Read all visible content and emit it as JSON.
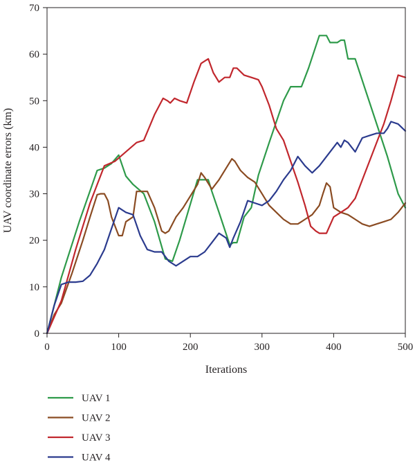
{
  "chart_data": {
    "type": "line",
    "title": "",
    "xlabel": "Iterations",
    "ylabel": "UAV coordinate errors (km)",
    "xlim": [
      0,
      500
    ],
    "ylim": [
      0,
      70
    ],
    "xticks": [
      0,
      100,
      200,
      300,
      400,
      500
    ],
    "yticks": [
      0,
      10,
      20,
      30,
      40,
      50,
      60,
      70
    ],
    "grid": false,
    "legend_position": "bottom-left, below plot",
    "series": [
      {
        "name": "UAV 1",
        "color": "#2e9a4a",
        "x": [
          0,
          20,
          45,
          70,
          80,
          90,
          100,
          110,
          120,
          135,
          150,
          165,
          175,
          185,
          210,
          220,
          225,
          230,
          240,
          255,
          260,
          265,
          275,
          285,
          295,
          310,
          330,
          340,
          355,
          365,
          380,
          390,
          395,
          405,
          410,
          415,
          420,
          430,
          445,
          460,
          475,
          490,
          500
        ],
        "y": [
          0,
          12,
          24,
          35,
          35.5,
          36.5,
          38.3,
          33.8,
          32,
          30,
          24,
          16,
          15.5,
          20,
          33,
          33,
          33,
          30.5,
          26,
          19,
          19.5,
          19.5,
          25,
          27,
          34,
          41,
          50,
          53,
          53,
          57,
          64,
          64,
          62.5,
          62.5,
          63,
          63,
          59,
          59,
          52,
          45,
          38,
          30,
          27
        ]
      },
      {
        "name": "UAV 2",
        "color": "#8a4b22",
        "x": [
          0,
          10,
          20,
          35,
          50,
          60,
          70,
          75,
          80,
          85,
          90,
          100,
          105,
          110,
          120,
          125,
          130,
          140,
          150,
          160,
          165,
          170,
          180,
          190,
          200,
          210,
          215,
          220,
          230,
          240,
          250,
          258,
          262,
          270,
          280,
          290,
          300,
          310,
          320,
          330,
          340,
          350,
          355,
          360,
          370,
          380,
          385,
          390,
          395,
          400,
          410,
          420,
          430,
          440,
          450,
          460,
          470,
          480,
          490,
          500
        ],
        "y": [
          0,
          4,
          6.5,
          13,
          20,
          25,
          29.8,
          30,
          30,
          28.5,
          25,
          21,
          21,
          24,
          25,
          30.5,
          30.5,
          30.5,
          27,
          22,
          21.5,
          22,
          25,
          27,
          29.5,
          32,
          34.5,
          33.5,
          31,
          33,
          35.5,
          37.5,
          37,
          35,
          33.5,
          32.5,
          30,
          27.5,
          26,
          24.5,
          23.5,
          23.5,
          24,
          24.5,
          25.5,
          27.5,
          30,
          32.3,
          31.5,
          27,
          26,
          25.5,
          24.5,
          23.5,
          23,
          23.5,
          24,
          24.5,
          26,
          28
        ]
      },
      {
        "name": "UAV 3",
        "color": "#c1272d",
        "x": [
          0,
          20,
          40,
          60,
          80,
          95,
          110,
          125,
          135,
          150,
          162,
          168,
          172,
          178,
          185,
          195,
          205,
          215,
          220,
          225,
          232,
          240,
          248,
          255,
          260,
          265,
          275,
          285,
          295,
          300,
          310,
          320,
          330,
          340,
          350,
          360,
          368,
          375,
          380,
          390,
          400,
          410,
          420,
          430,
          450,
          470,
          480,
          490,
          500
        ],
        "y": [
          0,
          7,
          18,
          28,
          36,
          37,
          39,
          41,
          41.5,
          47,
          50.5,
          50,
          49.5,
          50.5,
          50,
          49.5,
          54,
          58,
          58.5,
          59,
          56,
          54,
          55,
          55,
          57,
          57,
          55.5,
          55,
          54.5,
          53,
          49,
          44,
          41.5,
          37,
          32.5,
          27.5,
          23,
          22,
          21.5,
          21.5,
          25,
          26,
          27,
          29,
          37,
          45,
          50,
          55.5,
          55
        ]
      },
      {
        "name": "UAV 4",
        "color": "#2b3b8e",
        "x": [
          0,
          10,
          20,
          30,
          40,
          50,
          60,
          70,
          80,
          90,
          100,
          110,
          120,
          130,
          140,
          150,
          160,
          170,
          180,
          190,
          200,
          210,
          220,
          230,
          240,
          250,
          255,
          260,
          270,
          280,
          290,
          300,
          310,
          320,
          330,
          340,
          350,
          360,
          370,
          380,
          390,
          400,
          405,
          410,
          415,
          420,
          430,
          440,
          450,
          460,
          470,
          475,
          480,
          490,
          500
        ],
        "y": [
          0,
          6,
          10.5,
          11,
          11,
          11.2,
          12.5,
          15,
          18,
          22.5,
          27,
          26,
          25.5,
          21,
          18,
          17.5,
          17.5,
          15.5,
          14.5,
          15.5,
          16.5,
          16.5,
          17.5,
          19.5,
          21.5,
          20.5,
          18.5,
          20.5,
          24,
          28.5,
          28,
          27.5,
          28.5,
          30.5,
          33,
          35,
          38,
          36,
          34.5,
          36,
          38,
          40,
          41,
          40,
          41.5,
          41,
          39,
          42,
          42.5,
          43,
          43,
          44,
          45.5,
          45,
          43.5
        ]
      }
    ]
  }
}
